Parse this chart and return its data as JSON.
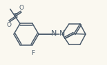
{
  "bg_color": "#faf8f0",
  "bond_color": "#4a5a6a",
  "label_color": "#4a5a6a",
  "line_width": 1.1,
  "font_size": 6.5,
  "fig_width": 1.55,
  "fig_height": 0.95,
  "dpi": 100,
  "xlim": [
    0,
    155
  ],
  "ylim": [
    0,
    95
  ]
}
